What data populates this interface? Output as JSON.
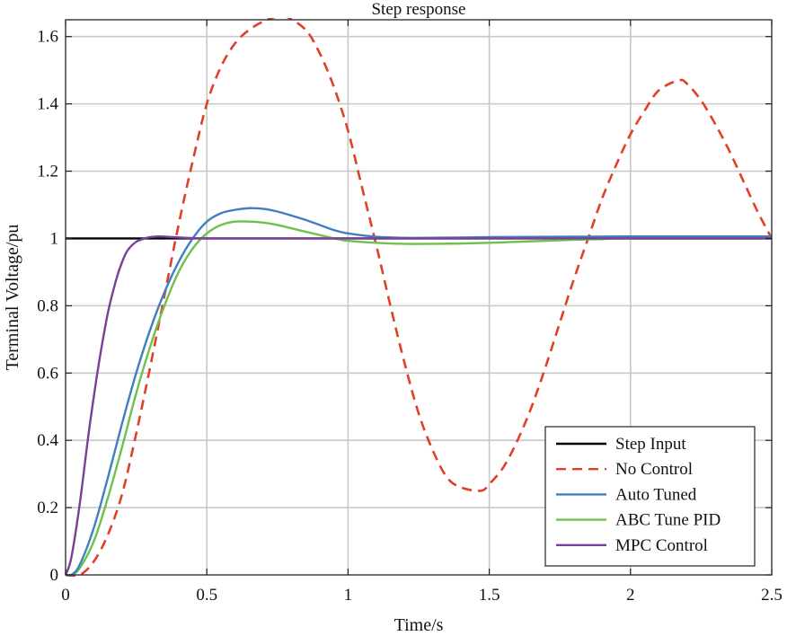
{
  "chart_data": {
    "type": "line",
    "title": "Step response",
    "xlabel": "Time/s",
    "ylabel": "Terminal Voltage/pu",
    "xlim": [
      0,
      2.5
    ],
    "ylim": [
      0,
      1.65
    ],
    "grid": true,
    "legend_position": "bottom-right",
    "xticks": [
      0,
      0.5,
      1,
      1.5,
      2,
      2.5
    ],
    "xtick_labels": [
      "0",
      "0.5",
      "1",
      "1.5",
      "2",
      "2.5"
    ],
    "yticks": [
      0,
      0.2,
      0.4,
      0.6,
      0.8,
      1,
      1.2,
      1.4,
      1.6
    ],
    "ytick_labels": [
      "0",
      "0.2",
      "0.4",
      "0.6",
      "0.8",
      "1",
      "1.2",
      "1.4",
      "1.6"
    ],
    "series": [
      {
        "name": "Step Input",
        "color": "#000000",
        "dash": "solid",
        "x": [
          0,
          2.5
        ],
        "y": [
          1,
          1
        ]
      },
      {
        "name": "No Control",
        "color": "#e0402a",
        "dash": "dashed",
        "x": [
          0,
          0.05,
          0.1,
          0.15,
          0.2,
          0.25,
          0.3,
          0.35,
          0.4,
          0.45,
          0.5,
          0.55,
          0.6,
          0.65,
          0.7,
          0.75,
          0.78,
          0.85,
          0.9,
          0.95,
          1.0,
          1.05,
          1.1,
          1.15,
          1.2,
          1.25,
          1.3,
          1.35,
          1.4,
          1.47,
          1.5,
          1.55,
          1.6,
          1.65,
          1.7,
          1.75,
          1.8,
          1.85,
          1.9,
          1.95,
          2.0,
          2.05,
          2.1,
          2.17,
          2.2,
          2.25,
          2.3,
          2.35,
          2.4,
          2.45,
          2.5
        ],
        "y": [
          0,
          0.0,
          0.04,
          0.12,
          0.24,
          0.42,
          0.62,
          0.83,
          1.04,
          1.23,
          1.4,
          1.51,
          1.58,
          1.62,
          1.645,
          1.66,
          1.66,
          1.62,
          1.55,
          1.45,
          1.32,
          1.15,
          0.98,
          0.8,
          0.63,
          0.48,
          0.37,
          0.29,
          0.26,
          0.25,
          0.27,
          0.32,
          0.4,
          0.5,
          0.62,
          0.75,
          0.88,
          1.0,
          1.12,
          1.22,
          1.31,
          1.38,
          1.44,
          1.47,
          1.46,
          1.41,
          1.34,
          1.26,
          1.17,
          1.08,
          1.0
        ]
      },
      {
        "name": "Auto Tuned",
        "color": "#3f7fbf",
        "dash": "solid",
        "x": [
          0,
          0.02,
          0.05,
          0.1,
          0.15,
          0.2,
          0.25,
          0.3,
          0.35,
          0.4,
          0.45,
          0.5,
          0.55,
          0.6,
          0.65,
          0.7,
          0.75,
          0.8,
          0.85,
          0.9,
          0.95,
          1.0,
          1.1,
          1.2,
          1.3,
          1.5,
          2.0,
          2.5
        ],
        "y": [
          0,
          0.0,
          0.03,
          0.14,
          0.29,
          0.45,
          0.6,
          0.73,
          0.84,
          0.93,
          1.0,
          1.05,
          1.075,
          1.085,
          1.09,
          1.088,
          1.08,
          1.068,
          1.055,
          1.04,
          1.025,
          1.015,
          1.005,
          1.002,
          1.002,
          1.004,
          1.006,
          1.006
        ]
      },
      {
        "name": "ABC Tune PID",
        "color": "#6cc24a",
        "dash": "solid",
        "x": [
          0,
          0.02,
          0.05,
          0.1,
          0.15,
          0.2,
          0.25,
          0.3,
          0.35,
          0.4,
          0.45,
          0.5,
          0.55,
          0.6,
          0.65,
          0.7,
          0.75,
          0.8,
          0.85,
          0.9,
          0.95,
          1.0,
          1.1,
          1.2,
          1.3,
          1.4,
          1.5,
          1.6,
          1.7,
          1.8,
          1.9,
          2.0,
          2.5
        ],
        "y": [
          0,
          0.0,
          0.02,
          0.1,
          0.23,
          0.38,
          0.54,
          0.68,
          0.8,
          0.9,
          0.97,
          1.015,
          1.04,
          1.05,
          1.05,
          1.047,
          1.04,
          1.03,
          1.02,
          1.01,
          1.0,
          0.993,
          0.987,
          0.984,
          0.984,
          0.985,
          0.987,
          0.99,
          0.993,
          0.996,
          0.998,
          1.0,
          1.0
        ]
      },
      {
        "name": "MPC Control",
        "color": "#7b3f98",
        "dash": "solid",
        "x": [
          0,
          0.02,
          0.05,
          0.08,
          0.1,
          0.12,
          0.15,
          0.18,
          0.2,
          0.22,
          0.25,
          0.28,
          0.3,
          0.33,
          0.36,
          0.4,
          0.45,
          0.5,
          0.6,
          0.8,
          1.0,
          1.5,
          2.0,
          2.5
        ],
        "y": [
          0,
          0.05,
          0.21,
          0.41,
          0.53,
          0.64,
          0.78,
          0.88,
          0.93,
          0.965,
          0.99,
          1.0,
          1.004,
          1.006,
          1.005,
          1.003,
          1.001,
          1.0,
          1.0,
          1.0,
          1.0,
          1.0,
          1.0,
          1.0
        ]
      }
    ]
  }
}
